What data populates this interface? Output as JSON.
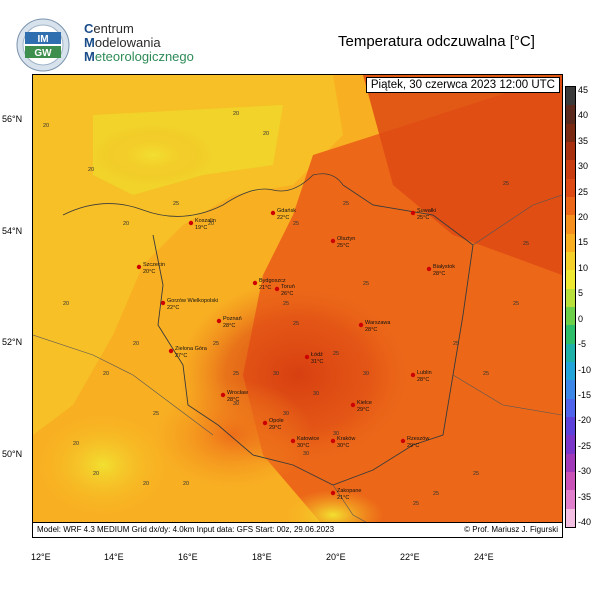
{
  "header": {
    "logo_text_top": "IM",
    "logo_text_bottom": "GW",
    "org_line1_cap": "C",
    "org_line1_rest": "entrum",
    "org_line2_cap": "M",
    "org_line2_rest": "odelowania",
    "org_line3_cap": "M",
    "org_line3_rest": "eteorologicznego",
    "title": "Temperatura odczuwalna [°C]"
  },
  "map": {
    "date_label": "Piątek, 30 czerwca 2023 12:00 UTC",
    "footer_left": "Model: WRF 4.3 MEDIUM   Grid dx/dy: 4.0km   Input data: GFS   Start: 00z, 29.06.2023",
    "footer_right": "© Prof. Mariusz J. Figurski",
    "lat_labels": [
      "56°N",
      "54°N",
      "52°N",
      "50°N"
    ],
    "lon_labels": [
      "12°E",
      "14°E",
      "16°E",
      "18°E",
      "20°E",
      "22°E",
      "24°E"
    ],
    "cities": [
      {
        "name": "Gdańsk",
        "temp": "22°C"
      },
      {
        "name": "Koszalin",
        "temp": "19°C"
      },
      {
        "name": "Suwałki",
        "temp": "25°C"
      },
      {
        "name": "Olsztyn",
        "temp": "25°C"
      },
      {
        "name": "Szczecin",
        "temp": "20°C"
      },
      {
        "name": "Białystok",
        "temp": "28°C"
      },
      {
        "name": "Bydgoszcz",
        "temp": "21°C"
      },
      {
        "name": "Toruń",
        "temp": "26°C"
      },
      {
        "name": "Gorzów Wielkopolski",
        "temp": "22°C"
      },
      {
        "name": "Poznań",
        "temp": "28°C"
      },
      {
        "name": "Warszawa",
        "temp": "28°C"
      },
      {
        "name": "Zielona Góra",
        "temp": "27°C"
      },
      {
        "name": "Łódź",
        "temp": "31°C"
      },
      {
        "name": "Lublin",
        "temp": "28°C"
      },
      {
        "name": "Wrocław",
        "temp": "28°C"
      },
      {
        "name": "Kielce",
        "temp": "29°C"
      },
      {
        "name": "Opole",
        "temp": "29°C"
      },
      {
        "name": "Katowice",
        "temp": "30°C"
      },
      {
        "name": "Kraków",
        "temp": "30°C"
      },
      {
        "name": "Rzeszów",
        "temp": "29°C"
      },
      {
        "name": "Zakopane",
        "temp": "21°C"
      }
    ],
    "field_labels": [
      "20",
      "20",
      "20",
      "20",
      "20",
      "20",
      "20",
      "20",
      "20",
      "20",
      "20",
      "20",
      "20",
      "25",
      "25",
      "25",
      "25",
      "25",
      "25",
      "25",
      "25",
      "25",
      "25",
      "25",
      "25",
      "25",
      "25",
      "25",
      "25",
      "25",
      "30",
      "30",
      "30",
      "30",
      "30",
      "30",
      "30",
      "25"
    ]
  },
  "colorbar": {
    "labels": [
      "45",
      "40",
      "35",
      "30",
      "25",
      "20",
      "15",
      "10",
      "5",
      "0",
      "-5",
      "-10",
      "-15",
      "-20",
      "-25",
      "-30",
      "-35",
      "-40"
    ],
    "colors": [
      "#3a3a3a",
      "#5a2a1e",
      "#7a2a12",
      "#a8300e",
      "#c83c10",
      "#de4a14",
      "#ec6818",
      "#f5901e",
      "#f8b022",
      "#f5d02a",
      "#eeea34",
      "#b8e03a",
      "#6ccf4a",
      "#2ebe6a",
      "#1fb0a8",
      "#22a4d8",
      "#3c86e8",
      "#4f64ea",
      "#5c42d8",
      "#7a36c8",
      "#a03ab8",
      "#c852b8",
      "#e080cc",
      "#f3bfe3"
    ]
  }
}
